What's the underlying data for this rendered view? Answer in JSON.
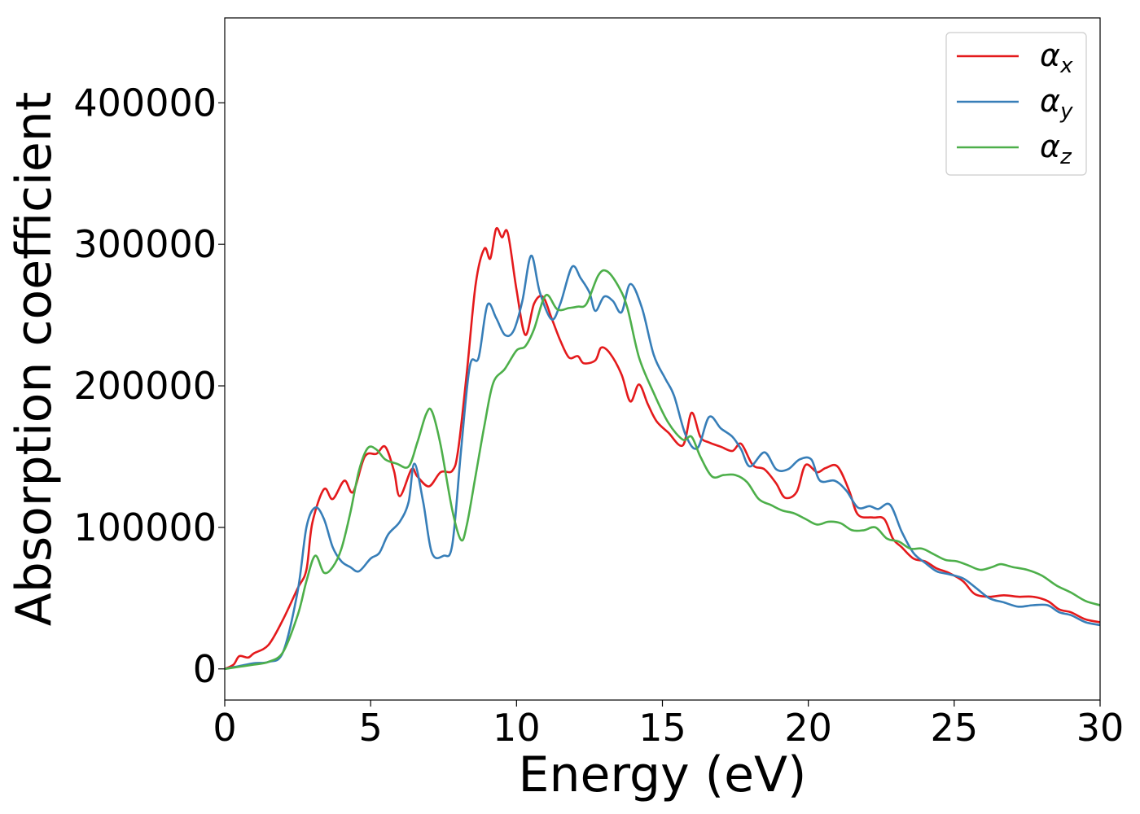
{
  "chart_data": {
    "type": "line",
    "xlabel": "Energy (eV)",
    "ylabel": "Absorption coefficient",
    "xlim": [
      0,
      30
    ],
    "ylim": [
      -22000,
      460000
    ],
    "xticks": [
      0,
      5,
      10,
      15,
      20,
      25,
      30
    ],
    "xtick_labels": [
      "0",
      "5",
      "10",
      "15",
      "20",
      "25",
      "30"
    ],
    "yticks": [
      0,
      100000,
      200000,
      300000,
      400000
    ],
    "ytick_labels": [
      "0",
      "100000",
      "200000",
      "300000",
      "400000"
    ],
    "grid": false,
    "legend_position": "top-right",
    "series": [
      {
        "name": "α",
        "subscript": "x",
        "color": "#e41a1c",
        "points": [
          [
            0,
            0
          ],
          [
            0.3,
            3000
          ],
          [
            0.5,
            9000
          ],
          [
            0.8,
            8000
          ],
          [
            1.0,
            11000
          ],
          [
            1.5,
            17000
          ],
          [
            2.0,
            35000
          ],
          [
            2.5,
            57000
          ],
          [
            2.8,
            70000
          ],
          [
            3.0,
            103000
          ],
          [
            3.4,
            127000
          ],
          [
            3.7,
            120000
          ],
          [
            4.1,
            133000
          ],
          [
            4.4,
            125000
          ],
          [
            4.8,
            150000
          ],
          [
            5.2,
            152000
          ],
          [
            5.5,
            157000
          ],
          [
            5.8,
            140000
          ],
          [
            6.0,
            122000
          ],
          [
            6.4,
            141000
          ],
          [
            6.6,
            136000
          ],
          [
            7.0,
            129000
          ],
          [
            7.4,
            139000
          ],
          [
            7.8,
            140000
          ],
          [
            8.0,
            155000
          ],
          [
            8.3,
            210000
          ],
          [
            8.6,
            272000
          ],
          [
            8.9,
            297000
          ],
          [
            9.1,
            290000
          ],
          [
            9.3,
            311000
          ],
          [
            9.5,
            305000
          ],
          [
            9.7,
            308000
          ],
          [
            10.0,
            268000
          ],
          [
            10.3,
            236000
          ],
          [
            10.6,
            258000
          ],
          [
            10.9,
            263000
          ],
          [
            11.2,
            248000
          ],
          [
            11.5,
            232000
          ],
          [
            11.8,
            220000
          ],
          [
            12.1,
            221000
          ],
          [
            12.3,
            216000
          ],
          [
            12.7,
            218000
          ],
          [
            12.9,
            227000
          ],
          [
            13.2,
            223000
          ],
          [
            13.6,
            208000
          ],
          [
            13.9,
            189000
          ],
          [
            14.2,
            201000
          ],
          [
            14.5,
            187000
          ],
          [
            14.8,
            175000
          ],
          [
            15.2,
            167000
          ],
          [
            15.7,
            158000
          ],
          [
            16.0,
            181000
          ],
          [
            16.3,
            164000
          ],
          [
            16.6,
            160000
          ],
          [
            17.0,
            157000
          ],
          [
            17.4,
            154000
          ],
          [
            17.7,
            159000
          ],
          [
            18.1,
            144000
          ],
          [
            18.5,
            141000
          ],
          [
            18.9,
            131000
          ],
          [
            19.2,
            121000
          ],
          [
            19.6,
            125000
          ],
          [
            19.9,
            144000
          ],
          [
            20.3,
            139000
          ],
          [
            20.6,
            142000
          ],
          [
            21.0,
            143000
          ],
          [
            21.4,
            126000
          ],
          [
            21.7,
            109000
          ],
          [
            22.2,
            107000
          ],
          [
            22.6,
            106000
          ],
          [
            22.9,
            92000
          ],
          [
            23.2,
            86000
          ],
          [
            23.6,
            78000
          ],
          [
            24.0,
            76000
          ],
          [
            24.4,
            71000
          ],
          [
            24.8,
            68000
          ],
          [
            25.3,
            62000
          ],
          [
            25.7,
            53000
          ],
          [
            26.2,
            51000
          ],
          [
            26.7,
            52000
          ],
          [
            27.2,
            51000
          ],
          [
            27.7,
            51000
          ],
          [
            28.2,
            48000
          ],
          [
            28.6,
            42000
          ],
          [
            29.0,
            40000
          ],
          [
            29.5,
            35000
          ],
          [
            30,
            33000
          ]
        ]
      },
      {
        "name": "α",
        "subscript": "y",
        "color": "#377eb8",
        "points": [
          [
            0,
            0
          ],
          [
            0.5,
            2000
          ],
          [
            1.0,
            4000
          ],
          [
            1.5,
            5000
          ],
          [
            2.0,
            12000
          ],
          [
            2.5,
            55000
          ],
          [
            2.8,
            100000
          ],
          [
            3.1,
            114000
          ],
          [
            3.4,
            106000
          ],
          [
            3.7,
            86000
          ],
          [
            4.0,
            76000
          ],
          [
            4.3,
            72000
          ],
          [
            4.6,
            69000
          ],
          [
            5.0,
            78000
          ],
          [
            5.3,
            82000
          ],
          [
            5.6,
            95000
          ],
          [
            6.0,
            104000
          ],
          [
            6.3,
            118000
          ],
          [
            6.5,
            145000
          ],
          [
            6.8,
            118000
          ],
          [
            7.1,
            82000
          ],
          [
            7.5,
            80000
          ],
          [
            7.8,
            88000
          ],
          [
            8.1,
            155000
          ],
          [
            8.4,
            214000
          ],
          [
            8.7,
            220000
          ],
          [
            9.0,
            257000
          ],
          [
            9.3,
            248000
          ],
          [
            9.6,
            236000
          ],
          [
            9.9,
            239000
          ],
          [
            10.2,
            260000
          ],
          [
            10.5,
            292000
          ],
          [
            10.8,
            266000
          ],
          [
            11.2,
            247000
          ],
          [
            11.5,
            258000
          ],
          [
            11.9,
            284000
          ],
          [
            12.2,
            276000
          ],
          [
            12.5,
            266000
          ],
          [
            12.7,
            253000
          ],
          [
            13.0,
            263000
          ],
          [
            13.3,
            260000
          ],
          [
            13.6,
            252000
          ],
          [
            13.9,
            272000
          ],
          [
            14.3,
            255000
          ],
          [
            14.7,
            222000
          ],
          [
            15.1,
            205000
          ],
          [
            15.4,
            193000
          ],
          [
            15.8,
            165000
          ],
          [
            16.2,
            156000
          ],
          [
            16.6,
            178000
          ],
          [
            17.0,
            170000
          ],
          [
            17.4,
            164000
          ],
          [
            17.7,
            155000
          ],
          [
            18.0,
            143000
          ],
          [
            18.5,
            153000
          ],
          [
            18.9,
            141000
          ],
          [
            19.3,
            141000
          ],
          [
            19.7,
            148000
          ],
          [
            20.1,
            148000
          ],
          [
            20.4,
            133000
          ],
          [
            20.9,
            133000
          ],
          [
            21.3,
            126000
          ],
          [
            21.7,
            114000
          ],
          [
            22.1,
            115000
          ],
          [
            22.4,
            113000
          ],
          [
            22.8,
            116000
          ],
          [
            23.2,
            97000
          ],
          [
            23.6,
            82000
          ],
          [
            24.0,
            75000
          ],
          [
            24.4,
            69000
          ],
          [
            24.8,
            67000
          ],
          [
            25.3,
            64000
          ],
          [
            25.7,
            58000
          ],
          [
            26.2,
            50000
          ],
          [
            26.7,
            47000
          ],
          [
            27.2,
            44000
          ],
          [
            27.7,
            45000
          ],
          [
            28.2,
            45000
          ],
          [
            28.6,
            40000
          ],
          [
            29.0,
            38000
          ],
          [
            29.5,
            33000
          ],
          [
            30,
            31000
          ]
        ]
      },
      {
        "name": "α",
        "subscript": "z",
        "color": "#4daf4a",
        "points": [
          [
            0,
            0
          ],
          [
            0.5,
            1500
          ],
          [
            1.0,
            3000
          ],
          [
            1.5,
            5000
          ],
          [
            2.0,
            12000
          ],
          [
            2.5,
            38000
          ],
          [
            2.8,
            62000
          ],
          [
            3.1,
            80000
          ],
          [
            3.4,
            68000
          ],
          [
            3.7,
            72000
          ],
          [
            4.0,
            85000
          ],
          [
            4.3,
            110000
          ],
          [
            4.6,
            140000
          ],
          [
            4.9,
            156000
          ],
          [
            5.2,
            155000
          ],
          [
            5.5,
            148000
          ],
          [
            5.9,
            145000
          ],
          [
            6.3,
            143000
          ],
          [
            6.6,
            160000
          ],
          [
            6.9,
            180000
          ],
          [
            7.1,
            182000
          ],
          [
            7.4,
            158000
          ],
          [
            7.8,
            112000
          ],
          [
            8.1,
            91000
          ],
          [
            8.3,
            102000
          ],
          [
            8.6,
            137000
          ],
          [
            8.9,
            172000
          ],
          [
            9.2,
            202000
          ],
          [
            9.6,
            212000
          ],
          [
            10.0,
            225000
          ],
          [
            10.3,
            228000
          ],
          [
            10.6,
            240000
          ],
          [
            11.0,
            264000
          ],
          [
            11.4,
            254000
          ],
          [
            11.8,
            255000
          ],
          [
            12.1,
            256000
          ],
          [
            12.4,
            258000
          ],
          [
            12.8,
            278000
          ],
          [
            13.1,
            281000
          ],
          [
            13.5,
            270000
          ],
          [
            13.8,
            255000
          ],
          [
            14.2,
            220000
          ],
          [
            14.7,
            195000
          ],
          [
            15.2,
            174000
          ],
          [
            15.7,
            162000
          ],
          [
            16.0,
            164000
          ],
          [
            16.3,
            150000
          ],
          [
            16.7,
            136000
          ],
          [
            17.1,
            137000
          ],
          [
            17.5,
            137000
          ],
          [
            17.9,
            132000
          ],
          [
            18.3,
            120000
          ],
          [
            18.7,
            116000
          ],
          [
            19.1,
            112000
          ],
          [
            19.5,
            110000
          ],
          [
            19.9,
            106000
          ],
          [
            20.3,
            102000
          ],
          [
            20.7,
            104000
          ],
          [
            21.1,
            103000
          ],
          [
            21.5,
            98000
          ],
          [
            21.9,
            98000
          ],
          [
            22.3,
            100000
          ],
          [
            22.7,
            92000
          ],
          [
            23.1,
            90000
          ],
          [
            23.5,
            85000
          ],
          [
            23.9,
            85000
          ],
          [
            24.3,
            81000
          ],
          [
            24.7,
            77000
          ],
          [
            25.1,
            76000
          ],
          [
            25.5,
            73000
          ],
          [
            25.9,
            70000
          ],
          [
            26.3,
            72000
          ],
          [
            26.6,
            74000
          ],
          [
            27.0,
            72000
          ],
          [
            27.5,
            70000
          ],
          [
            28.0,
            66000
          ],
          [
            28.5,
            59000
          ],
          [
            29.0,
            54000
          ],
          [
            29.5,
            48000
          ],
          [
            30,
            45000
          ]
        ]
      }
    ]
  }
}
